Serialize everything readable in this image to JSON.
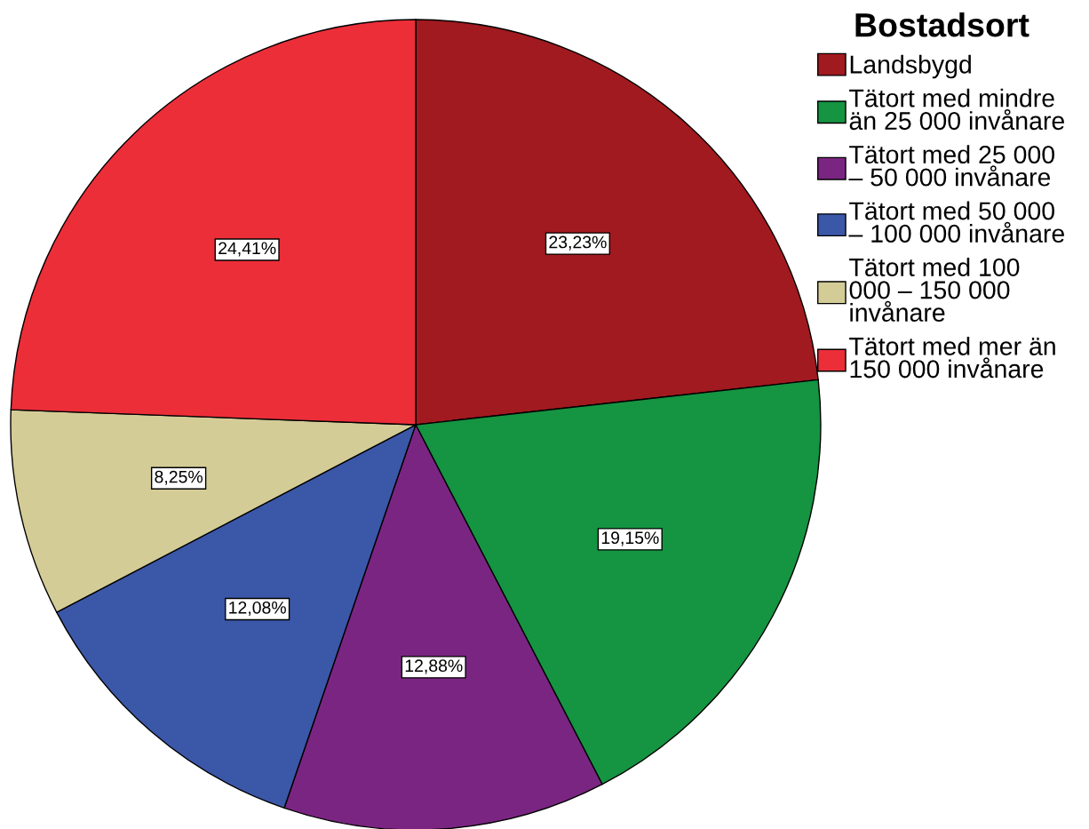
{
  "chart_data": {
    "type": "pie",
    "categories": [
      "Landsbygd",
      "Tätort med mindre\nän 25 000 invånare",
      "Tätort med 25 000\n– 50 000 invånare",
      "Tätort med 50 000\n– 100 000 invånare",
      "Tätort med 100\n000 – 150 000\ninvånare",
      "Tätort med mer än\n150 000 invånare"
    ],
    "values": [
      23.23,
      19.15,
      12.88,
      12.08,
      8.25,
      24.41
    ],
    "colors": [
      "#a11a1f",
      "#159442",
      "#7b2582",
      "#3b57a8",
      "#d4cc97",
      "#ec2e39"
    ],
    "value_labels": [
      "23,23%",
      "19,15%",
      "12,88%",
      "12,08%",
      "8,25%",
      "24,41%"
    ],
    "legend_title": "Bostadsort",
    "legend": "right"
  }
}
